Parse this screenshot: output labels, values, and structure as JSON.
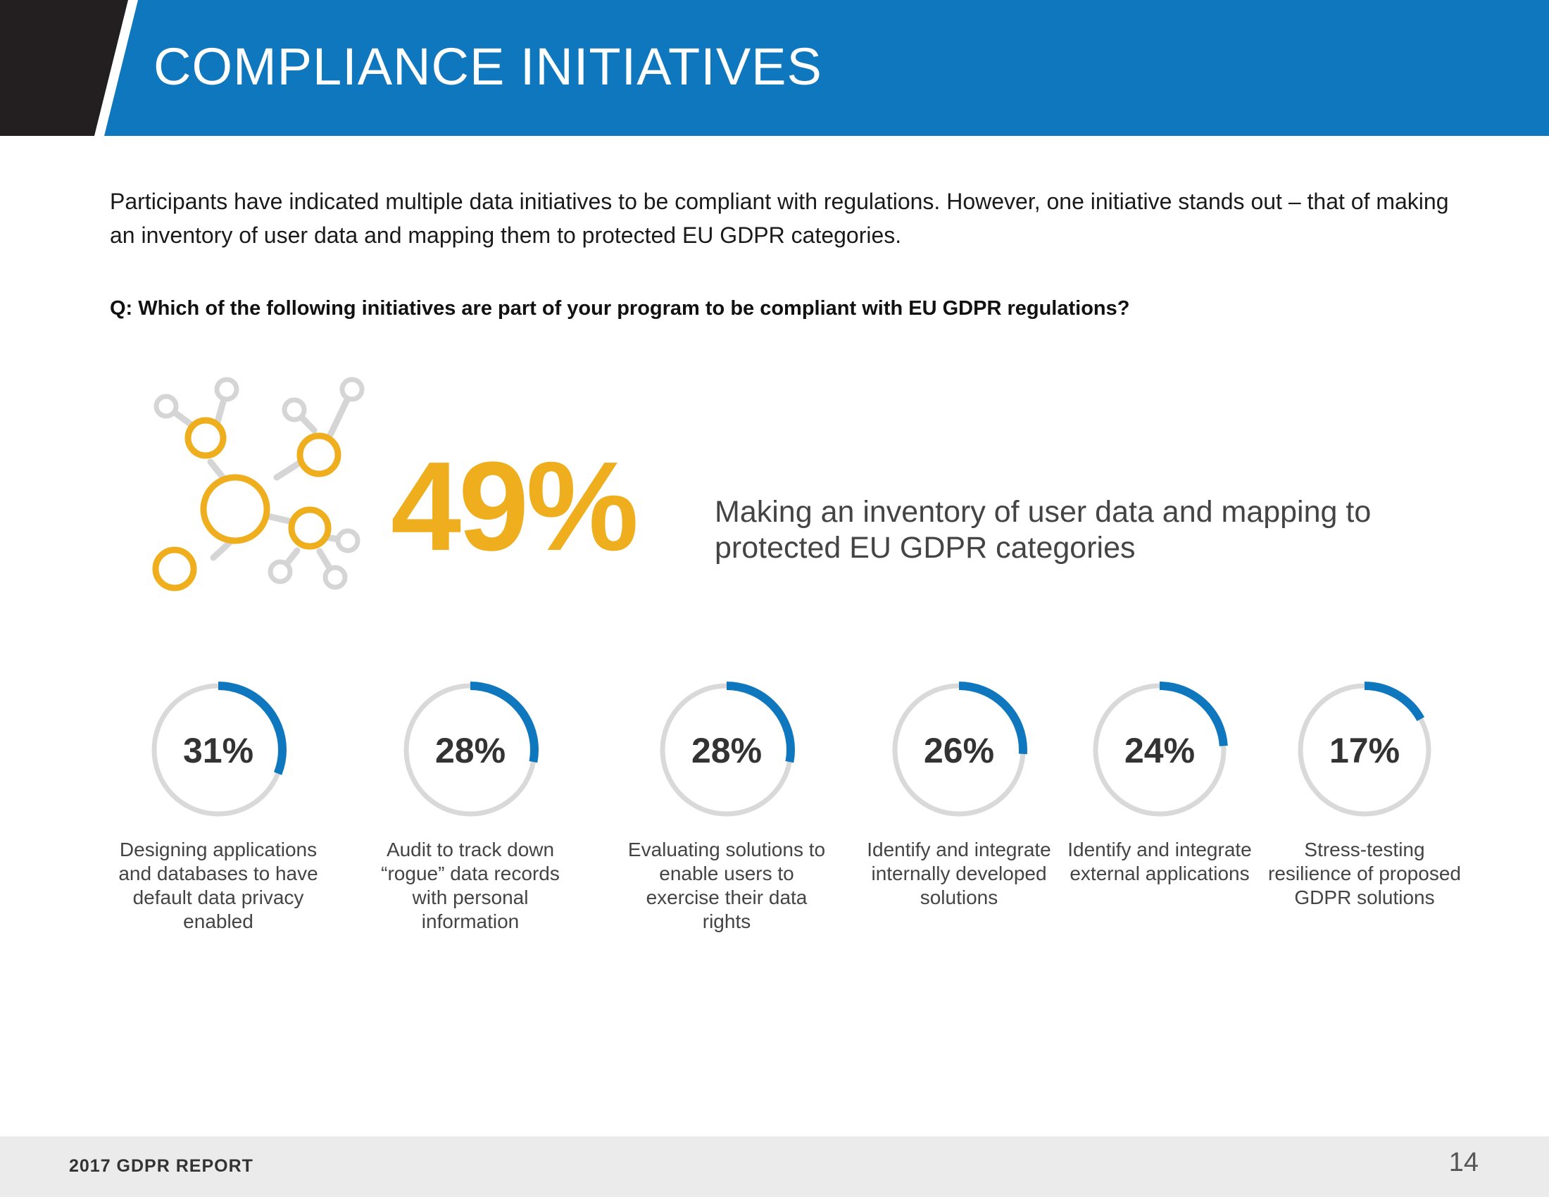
{
  "colors": {
    "brand_blue": "#0f77be",
    "header_dark": "#231f20",
    "accent_gold": "#eeae1d",
    "ring_gray": "#d9d9d9",
    "network_gray": "#d5d5d5"
  },
  "header": {
    "title": "COMPLIANCE INITIATIVES"
  },
  "intro": {
    "text": "Participants have indicated multiple data initiatives to be compliant with regulations. However, one initiative stands out – that of making an inventory of user data and mapping them to protected EU GDPR categories."
  },
  "question": "Q: Which of the following initiatives are part of your program to be compliant with EU GDPR regulations?",
  "highlight": {
    "icon": "network-nodes-icon",
    "value": 49,
    "value_label": "49%",
    "label": "Making an inventory of user data and mapping to protected EU GDPR categories"
  },
  "chart_data": {
    "type": "donut",
    "title": "Q: Which of the following initiatives are part of your program to be compliant with EU GDPR regulations?",
    "unit": "%",
    "categories": [
      "Designing applications and databases to have default data privacy enabled",
      "Audit to track down “rogue” data records with personal information",
      "Evaluating solutions to enable users to exercise their data rights",
      "Identify and integrate internally developed solutions",
      "Identify and integrate external applications",
      "Stress-testing resilience of proposed GDPR solutions"
    ],
    "values": [
      31,
      28,
      28,
      26,
      24,
      17
    ],
    "value_labels": [
      "31%",
      "28%",
      "28%",
      "26%",
      "24%",
      "17%"
    ]
  },
  "footer": {
    "report_title": "2017 GDPR REPORT",
    "page_number": "14"
  }
}
